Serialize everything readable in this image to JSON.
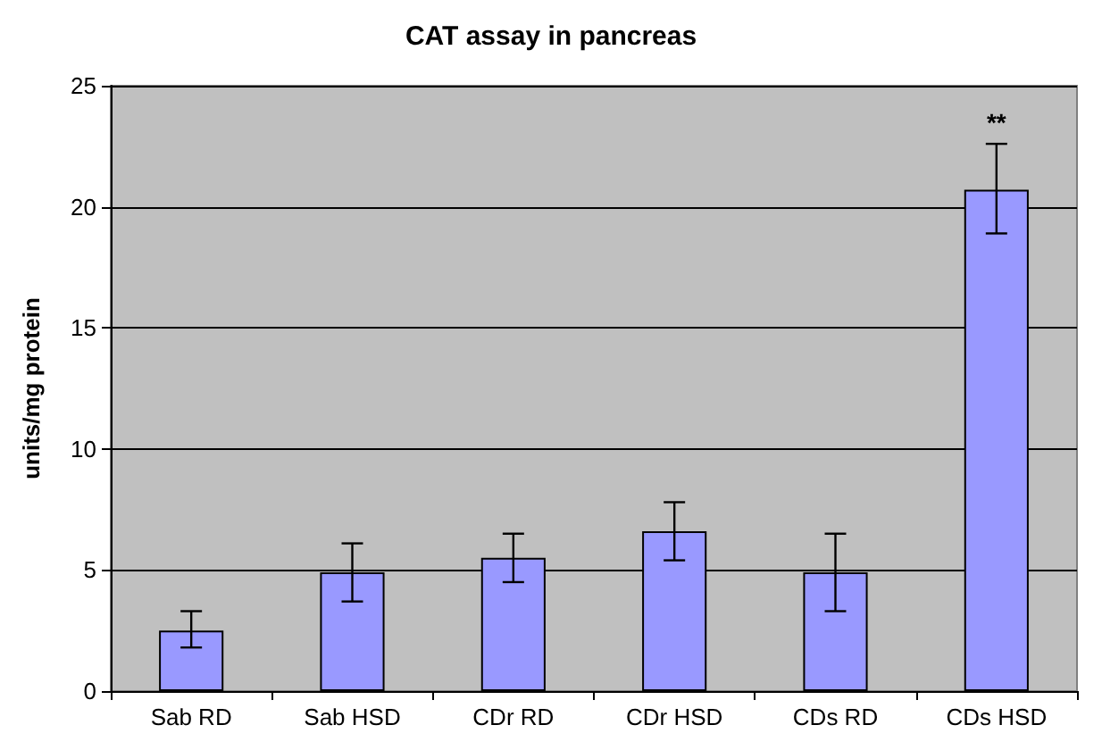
{
  "chart_data": {
    "type": "bar",
    "title": "CAT assay in pancreas",
    "ylabel": "units/mg protein",
    "categories": [
      "Sab RD",
      "Sab HSD",
      "CDr RD",
      "CDr HSD",
      "CDs RD",
      "CDs HSD"
    ],
    "values": [
      2.5,
      4.9,
      5.5,
      6.6,
      4.9,
      20.7
    ],
    "errors": [
      [
        1.8,
        3.3
      ],
      [
        3.7,
        6.1
      ],
      [
        4.5,
        6.5
      ],
      [
        5.4,
        7.8
      ],
      [
        3.3,
        6.5
      ],
      [
        18.9,
        22.6
      ]
    ],
    "color": "#9999ff",
    "ylim": [
      0,
      25
    ],
    "yticks": [
      0,
      5,
      10,
      15,
      20,
      25
    ],
    "grid": "y",
    "annotations": [
      "**"
    ]
  }
}
